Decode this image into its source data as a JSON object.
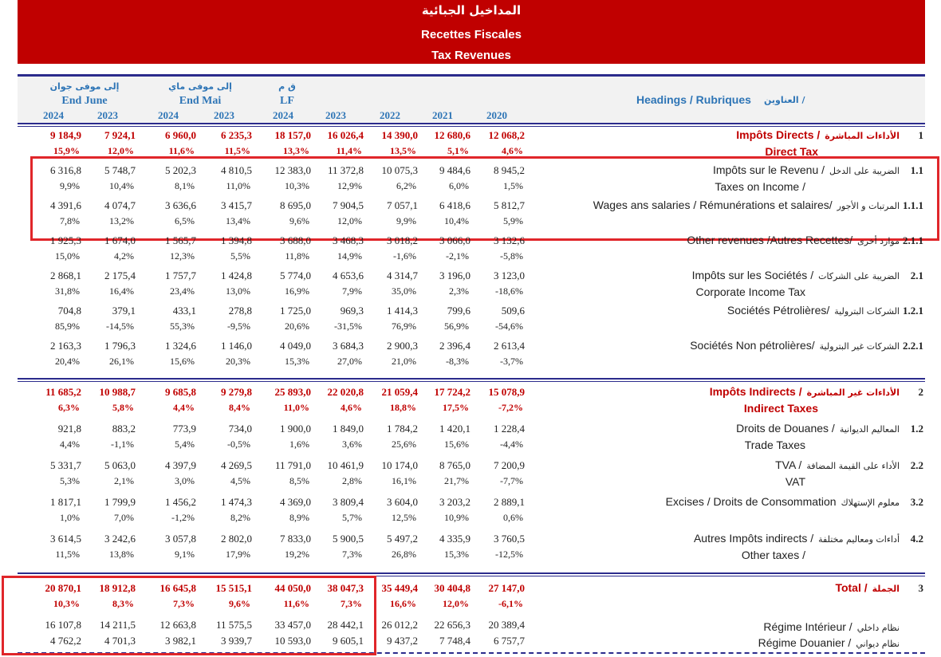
{
  "header": {
    "title_ar": "المداخيل الجبائية",
    "title_fr": "Recettes Fiscales",
    "title_en": "Tax Revenues"
  },
  "columns": {
    "groups": [
      {
        "ar": "إلى موفى جوان",
        "label": "End June"
      },
      {
        "ar": "إلى موفى ماي",
        "label": "End Mai"
      },
      {
        "ar": "ق م",
        "label": "LF"
      }
    ],
    "years": [
      "2024",
      "2023",
      "2024",
      "2023",
      "2024",
      "2023",
      "2022",
      "2021",
      "2020"
    ],
    "headings": "Headings / Rubriques",
    "headings_ar": "العناوين /"
  },
  "sections": [
    {
      "rows": [
        {
          "no": "1",
          "fr": "Impôts Directs /",
          "ar": "الأداءات المباشرة",
          "en": "Direct Tax",
          "emphasis": true,
          "values": [
            "9 184,9",
            "7 924,1",
            "6 960,0",
            "6 235,3",
            "18 157,0",
            "16 026,4",
            "14 390,0",
            "12 680,6",
            "12 068,2"
          ],
          "changes": [
            "15,9%",
            "12,0%",
            "11,6%",
            "11,5%",
            "13,3%",
            "11,4%",
            "13,5%",
            "5,1%",
            "4,6%"
          ]
        },
        {
          "no": "1.1",
          "fr": "Impôts sur le Revenu /",
          "ar": "الضريبة على الدخل",
          "en": "Taxes on Income /",
          "values": [
            "6 316,8",
            "5 748,7",
            "5 202,3",
            "4 810,5",
            "12 383,0",
            "11 372,8",
            "10 075,3",
            "9 484,6",
            "8 945,2"
          ],
          "changes": [
            "9,9%",
            "10,4%",
            "8,1%",
            "11,0%",
            "10,3%",
            "12,9%",
            "6,2%",
            "6,0%",
            "1,5%"
          ]
        },
        {
          "no": "1.1.1",
          "fr": "Wages ans salaries / Rémunérations et salaires/",
          "ar": "المرتبات و الأجور",
          "values": [
            "4 391,6",
            "4 074,7",
            "3 636,6",
            "3 415,7",
            "8 695,0",
            "7 904,5",
            "7 057,1",
            "6 418,6",
            "5 812,7"
          ],
          "changes": [
            "7,8%",
            "13,2%",
            "6,5%",
            "13,4%",
            "9,6%",
            "12,0%",
            "9,9%",
            "10,4%",
            "5,9%"
          ]
        },
        {
          "no": "2.1.1",
          "fr": "Other revenues /Autres Recettes/",
          "ar": "موارد أخرى",
          "values": [
            "1 925,3",
            "1 674,0",
            "1 565,7",
            "1 394,8",
            "3 688,0",
            "3 468,3",
            "3 018,2",
            "3 066,0",
            "3 132,6"
          ],
          "changes": [
            "15,0%",
            "4,2%",
            "12,3%",
            "5,5%",
            "11,8%",
            "14,9%",
            "-1,6%",
            "-2,1%",
            "-5,8%"
          ]
        },
        {
          "no": "2.1",
          "fr": "Impôts sur les Sociétés /",
          "ar": "الضريبة على الشركات",
          "en": "Corporate Income Tax",
          "values": [
            "2 868,1",
            "2 175,4",
            "1 757,7",
            "1 424,8",
            "5 774,0",
            "4 653,6",
            "4 314,7",
            "3 196,0",
            "3 123,0"
          ],
          "changes": [
            "31,8%",
            "16,4%",
            "23,4%",
            "13,0%",
            "16,9%",
            "7,9%",
            "35,0%",
            "2,3%",
            "-18,6%"
          ]
        },
        {
          "no": "1.2.1",
          "fr": "Sociétés Pétrolières/",
          "ar": "الشركات البترولية",
          "values": [
            "704,8",
            "379,1",
            "433,1",
            "278,8",
            "1 725,0",
            "969,3",
            "1 414,3",
            "799,6",
            "509,6"
          ],
          "changes": [
            "85,9%",
            "-14,5%",
            "55,3%",
            "-9,5%",
            "20,6%",
            "-31,5%",
            "76,9%",
            "56,9%",
            "-54,6%"
          ]
        },
        {
          "no": "2.2.1",
          "fr": "Sociétés Non pétrolières/",
          "ar": "الشركات غير البترولية",
          "values": [
            "2 163,3",
            "1 796,3",
            "1 324,6",
            "1 146,0",
            "4 049,0",
            "3 684,3",
            "2 900,3",
            "2 396,4",
            "2 613,4"
          ],
          "changes": [
            "20,4%",
            "26,1%",
            "15,6%",
            "20,3%",
            "15,3%",
            "27,0%",
            "21,0%",
            "-8,3%",
            "-3,7%"
          ]
        }
      ]
    },
    {
      "rows": [
        {
          "no": "2",
          "fr": "Impôts Indirects /",
          "ar": "الأداءات غير المباشرة",
          "en": "Indirect Taxes",
          "emphasis": true,
          "values": [
            "11 685,2",
            "10 988,7",
            "9 685,8",
            "9 279,8",
            "25 893,0",
            "22 020,8",
            "21 059,4",
            "17 724,2",
            "15 078,9"
          ],
          "changes": [
            "6,3%",
            "5,8%",
            "4,4%",
            "8,4%",
            "11,0%",
            "4,6%",
            "18,8%",
            "17,5%",
            "-7,2%"
          ]
        },
        {
          "no": "1.2",
          "fr": "Droits de Douanes /",
          "ar": "المعاليم الديوانية",
          "en": "Trade Taxes",
          "values": [
            "921,8",
            "883,2",
            "773,9",
            "734,0",
            "1 900,0",
            "1 849,0",
            "1 784,2",
            "1 420,1",
            "1 228,4"
          ],
          "changes": [
            "4,4%",
            "-1,1%",
            "5,4%",
            "-0,5%",
            "1,6%",
            "3,6%",
            "25,6%",
            "15,6%",
            "-4,4%"
          ]
        },
        {
          "no": "2.2",
          "fr": "TVA /",
          "ar": "الأداء على القيمة المضافة",
          "en": "VAT",
          "values": [
            "5 331,7",
            "5 063,0",
            "4 397,9",
            "4 269,5",
            "11 791,0",
            "10 461,9",
            "10 174,0",
            "8 765,0",
            "7 200,9"
          ],
          "changes": [
            "5,3%",
            "2,1%",
            "3,0%",
            "4,5%",
            "8,5%",
            "2,8%",
            "16,1%",
            "21,7%",
            "-7,7%"
          ]
        },
        {
          "no": "3.2",
          "fr": "Excises / Droits de Consommation",
          "ar": "معلوم الإستهلاك",
          "values": [
            "1 817,1",
            "1 799,9",
            "1 456,2",
            "1 474,3",
            "4 369,0",
            "3 809,4",
            "3 604,0",
            "3 203,2",
            "2 889,1"
          ],
          "changes": [
            "1,0%",
            "7,0%",
            "-1,2%",
            "8,2%",
            "8,9%",
            "5,7%",
            "12,5%",
            "10,9%",
            "0,6%"
          ]
        },
        {
          "no": "4.2",
          "fr": "Autres Impôts indirects /",
          "ar": "أداءات ومعاليم مختلفة",
          "en": "Other taxes /",
          "values": [
            "3 614,5",
            "3 242,6",
            "3 057,8",
            "2 802,0",
            "7 833,0",
            "5 900,5",
            "5 497,2",
            "4 335,9",
            "3 760,5"
          ],
          "changes": [
            "11,5%",
            "13,8%",
            "9,1%",
            "17,9%",
            "19,2%",
            "7,3%",
            "26,8%",
            "15,3%",
            "-12,5%"
          ]
        }
      ]
    },
    {
      "rows": [
        {
          "no": "3",
          "fr": "Total /",
          "ar": "الجملة",
          "emphasis": true,
          "values": [
            "20 870,1",
            "18 912,8",
            "16 645,8",
            "15 515,1",
            "44 050,0",
            "38 047,3",
            "35 449,4",
            "30 404,8",
            "27 147,0"
          ],
          "changes": [
            "10,3%",
            "8,3%",
            "7,3%",
            "9,6%",
            "11,6%",
            "7,3%",
            "16,6%",
            "12,0%",
            "-6,1%"
          ]
        },
        {
          "fr": "Régime Intérieur /",
          "ar": "نظام داخلي",
          "values": [
            "16 107,8",
            "14 211,5",
            "12 663,8",
            "11 575,5",
            "33 457,0",
            "28 442,1",
            "26 012,2",
            "22 656,3",
            "20 389,4"
          ]
        },
        {
          "fr": "Régime Douanier /",
          "ar": "نظام ديواني",
          "values": [
            "4 762,2",
            "4 701,3",
            "3 982,1",
            "3 939,7",
            "10 593,0",
            "9 605,1",
            "9 437,2",
            "7 748,4",
            "6 757,7"
          ]
        }
      ]
    }
  ]
}
